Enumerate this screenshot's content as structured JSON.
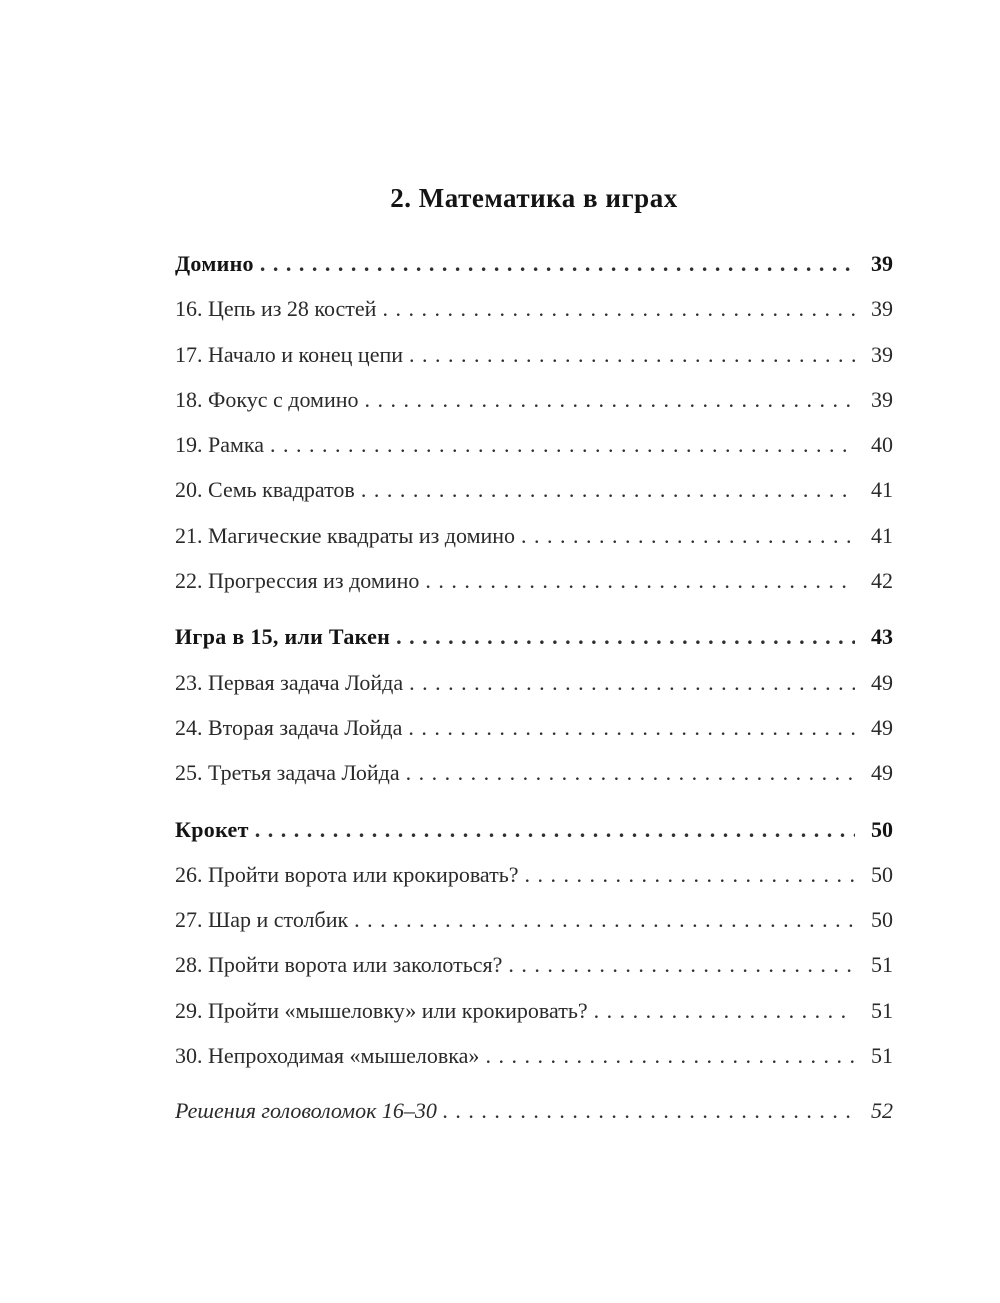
{
  "page": {
    "title": "2. Математика в играх"
  },
  "toc": {
    "entries": [
      {
        "label": "Домино",
        "page": "39",
        "style": "section"
      },
      {
        "label": "16. Цепь из 28 костей",
        "page": "39",
        "style": "item"
      },
      {
        "label": "17. Начало и конец цепи",
        "page": "39",
        "style": "item"
      },
      {
        "label": "18. Фокус с домино",
        "page": "39",
        "style": "item"
      },
      {
        "label": "19. Рамка",
        "page": "40",
        "style": "item"
      },
      {
        "label": "20. Семь квадратов",
        "page": "41",
        "style": "item"
      },
      {
        "label": "21. Магические квадраты из домино",
        "page": "41",
        "style": "item"
      },
      {
        "label": "22. Прогрессия из домино",
        "page": "42",
        "style": "item"
      },
      {
        "label": "Игра в 15, или Такен",
        "page": "43",
        "style": "section"
      },
      {
        "label": "23. Первая задача Лойда",
        "page": "49",
        "style": "item"
      },
      {
        "label": "24. Вторая задача Лойда",
        "page": "49",
        "style": "item"
      },
      {
        "label": "25. Третья задача Лойда",
        "page": "49",
        "style": "item"
      },
      {
        "label": "Крокет",
        "page": "50",
        "style": "section"
      },
      {
        "label": "26. Пройти ворота или крокировать?",
        "page": "50",
        "style": "item"
      },
      {
        "label": "27. Шар и столбик",
        "page": "50",
        "style": "item"
      },
      {
        "label": "28. Пройти ворота или заколоться?",
        "page": "51",
        "style": "item"
      },
      {
        "label": "29. Пройти «мышеловку» или крокировать?",
        "page": "51",
        "style": "item"
      },
      {
        "label": "30. Непроходимая «мышеловка»",
        "page": "51",
        "style": "item"
      },
      {
        "label": "Решения головоломок 16–30",
        "page": "52",
        "style": "solutions"
      }
    ]
  }
}
